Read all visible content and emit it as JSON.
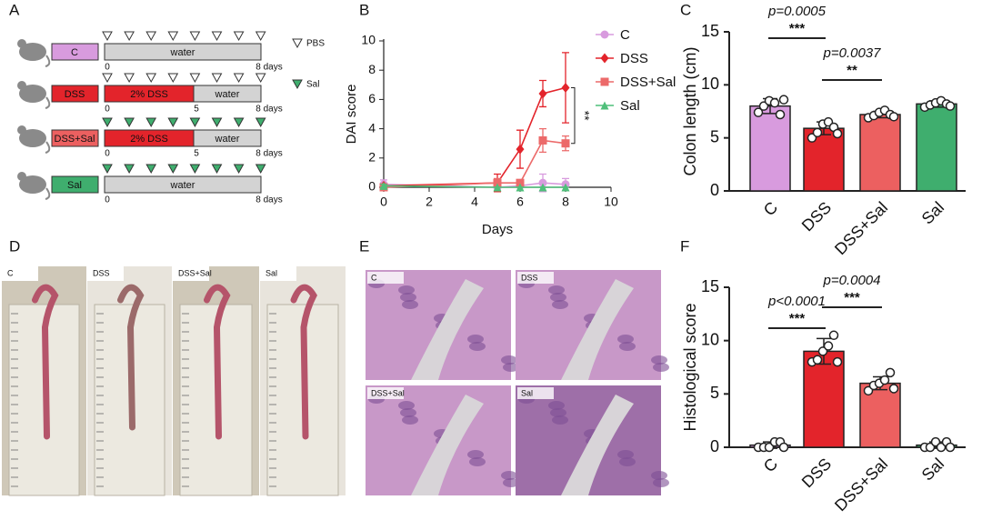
{
  "panel_letters": [
    "A",
    "B",
    "C",
    "D",
    "E",
    "F"
  ],
  "schematic": {
    "legend": [
      "PBS",
      "Sal"
    ],
    "rows": [
      {
        "label": "C",
        "bars": [
          "water"
        ],
        "ticks": [
          "0",
          "8 days"
        ]
      },
      {
        "label": "DSS",
        "bars": [
          "2% DSS",
          "water"
        ],
        "ticks": [
          "0",
          "5",
          "8 days"
        ]
      },
      {
        "label": "DSS+Sal",
        "bars": [
          "2% DSS",
          "water"
        ],
        "ticks": [
          "0",
          "5",
          "8 days"
        ]
      },
      {
        "label": "Sal",
        "bars": [
          "water"
        ],
        "ticks": [
          "0",
          "8 days"
        ]
      }
    ]
  },
  "photos": {
    "labels": [
      "C",
      "DSS",
      "DSS+Sal",
      "Sal"
    ]
  },
  "histology": {
    "labels": [
      "C",
      "DSS",
      "DSS+Sal",
      "Sal"
    ]
  },
  "chart_data": [
    {
      "type": "line",
      "xlabel": "Days",
      "ylabel": "DAI score",
      "x": [
        0,
        5,
        6,
        7,
        8
      ],
      "xlim": [
        0,
        10
      ],
      "xticks": [
        0,
        2,
        4,
        6,
        8,
        10
      ],
      "ylim": [
        0,
        10
      ],
      "yticks": [
        0,
        2,
        4,
        6,
        8,
        10
      ],
      "legend": "right",
      "annotations": [
        "**"
      ],
      "series": [
        {
          "name": "C",
          "color": "#d89bde",
          "marker": "circle",
          "values": [
            0.2,
            0,
            0.1,
            0.3,
            0.2
          ],
          "errors": [
            0.3,
            0.1,
            0.1,
            0.6,
            0.4
          ]
        },
        {
          "name": "DSS",
          "color": "#e3242b",
          "marker": "diamond",
          "values": [
            0.1,
            0.3,
            2.6,
            6.4,
            6.8
          ],
          "errors": [
            0.1,
            0.6,
            1.3,
            0.9,
            2.4
          ]
        },
        {
          "name": "DSS+Sal",
          "color": "#ec6a6a",
          "marker": "square",
          "values": [
            0,
            0.3,
            0.3,
            3.2,
            3.0
          ],
          "errors": [
            0,
            0.3,
            0.2,
            0.8,
            0.5
          ]
        },
        {
          "name": "Sal",
          "color": "#4fbf7a",
          "marker": "triangle",
          "values": [
            0.1,
            0,
            0,
            0,
            0
          ],
          "errors": [
            0.1,
            0,
            0,
            0,
            0
          ]
        }
      ]
    },
    {
      "type": "bar",
      "ylabel": "Colon length (cm)",
      "categories": [
        "C",
        "DSS",
        "DSS+Sal",
        "Sal"
      ],
      "colors": [
        "#d89bde",
        "#e3242b",
        "#ec6060",
        "#3fae6e"
      ],
      "values": [
        8.0,
        5.9,
        7.2,
        8.2
      ],
      "errors": [
        0.7,
        0.6,
        0.3,
        0.3
      ],
      "points": [
        [
          7.4,
          8.0,
          8.5,
          8.3,
          7.2,
          8.6
        ],
        [
          5.0,
          5.5,
          6.3,
          6.5,
          6.0,
          5.4
        ],
        [
          6.9,
          7.1,
          7.4,
          7.6,
          7.2,
          7.0
        ],
        [
          7.9,
          8.1,
          8.3,
          8.5,
          8.2,
          8.0
        ]
      ],
      "ylim": [
        0,
        15
      ],
      "yticks": [
        0,
        5,
        10,
        15
      ],
      "comparisons": [
        {
          "label": "p=0.0005",
          "stars": "***"
        },
        {
          "label": "p=0.0037",
          "stars": "**"
        }
      ]
    },
    {
      "type": "bar",
      "ylabel": "Histological score",
      "categories": [
        "C",
        "DSS",
        "DSS+Sal",
        "Sal"
      ],
      "colors": [
        "#d89bde",
        "#e3242b",
        "#ec6060",
        "#3fae6e"
      ],
      "values": [
        0.2,
        9.0,
        6.0,
        0.2
      ],
      "errors": [
        0.3,
        1.2,
        0.6,
        0.3
      ],
      "points": [
        [
          0,
          0,
          0,
          0.5,
          0.5,
          0
        ],
        [
          8.0,
          8.2,
          9.0,
          9.5,
          10.5,
          8.0
        ],
        [
          5.3,
          5.8,
          6.0,
          6.3,
          7.0,
          5.5
        ],
        [
          0,
          0,
          0.5,
          0,
          0.5,
          0
        ]
      ],
      "ylim": [
        0,
        15
      ],
      "yticks": [
        0,
        5,
        10,
        15
      ],
      "comparisons": [
        {
          "label": "p<0.0001",
          "stars": "***"
        },
        {
          "label": "p=0.0004",
          "stars": "***"
        }
      ]
    }
  ]
}
